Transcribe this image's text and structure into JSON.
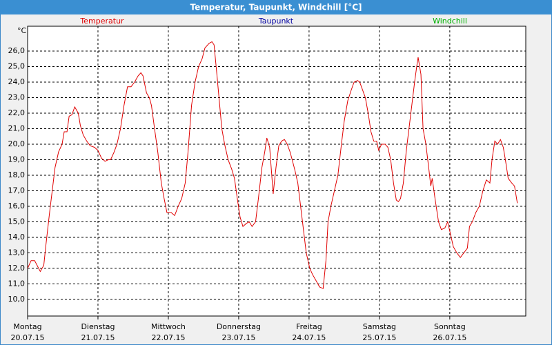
{
  "chart_data": {
    "type": "line",
    "title": "Temperatur, Taupunkt, Windchill [°C]",
    "y_unit": "°C",
    "legend": [
      {
        "name": "Temperatur",
        "color": "#e00000"
      },
      {
        "name": "Taupunkt",
        "color": "#0000a0"
      },
      {
        "name": "Windchill",
        "color": "#00b000"
      }
    ],
    "x": [
      0.0,
      0.05,
      0.1,
      0.18,
      0.23,
      0.26,
      0.31,
      0.35,
      0.39,
      0.44,
      0.49,
      0.52,
      0.56,
      0.59,
      0.63,
      0.67,
      0.72,
      0.75,
      0.79,
      0.84,
      0.89,
      0.95,
      1.0,
      1.05,
      1.1,
      1.15,
      1.18,
      1.23,
      1.27,
      1.32,
      1.37,
      1.42,
      1.47,
      1.52,
      1.57,
      1.61,
      1.64,
      1.69,
      1.73,
      1.76,
      1.81,
      1.85,
      1.9,
      1.94,
      1.98,
      2.04,
      2.09,
      2.14,
      2.19,
      2.24,
      2.28,
      2.33,
      2.38,
      2.43,
      2.48,
      2.52,
      2.58,
      2.62,
      2.65,
      2.69,
      2.73,
      2.76,
      2.8,
      2.85,
      2.9,
      2.94,
      2.98,
      3.02,
      3.06,
      3.11,
      3.15,
      3.19,
      3.24,
      3.28,
      3.33,
      3.37,
      3.4,
      3.44,
      3.49,
      3.53,
      3.57,
      3.61,
      3.65,
      3.69,
      3.73,
      3.76,
      3.8,
      3.84,
      3.88,
      3.92,
      3.96,
      4.01,
      4.05,
      4.1,
      4.15,
      4.2,
      4.24,
      4.27,
      4.31,
      4.36,
      4.41,
      4.46,
      4.5,
      4.55,
      4.6,
      4.64,
      4.69,
      4.72,
      4.76,
      4.8,
      4.84,
      4.88,
      4.92,
      4.96,
      4.99,
      5.03,
      5.08,
      5.12,
      5.16,
      5.2,
      5.24,
      5.27,
      5.3,
      5.34,
      5.38,
      5.42,
      5.46,
      5.5,
      5.53,
      5.55,
      5.59,
      5.62,
      5.66,
      5.7,
      5.73,
      5.75,
      5.79,
      5.84,
      5.88,
      5.93,
      5.97,
      6.01,
      6.05,
      6.1,
      6.15,
      6.2,
      6.25,
      6.28,
      6.32,
      6.37,
      6.42,
      6.47,
      6.52,
      6.57,
      6.6,
      6.64,
      6.68,
      6.72,
      6.76,
      6.79,
      6.83,
      6.88,
      6.92,
      6.96
    ],
    "series": [
      {
        "name": "Temperatur",
        "color": "#e00000",
        "values": [
          12.0,
          12.5,
          12.5,
          11.8,
          12.2,
          13.5,
          15.5,
          17.0,
          18.5,
          19.5,
          20.0,
          20.8,
          20.8,
          21.8,
          21.9,
          22.4,
          22.0,
          21.2,
          20.6,
          20.2,
          19.9,
          19.8,
          19.6,
          19.1,
          18.9,
          19.0,
          19.0,
          19.5,
          20.0,
          21.0,
          22.5,
          23.7,
          23.7,
          24.0,
          24.4,
          24.6,
          24.4,
          23.3,
          23.0,
          22.5,
          20.8,
          19.5,
          17.5,
          16.5,
          15.6,
          15.6,
          15.4,
          16.0,
          16.5,
          17.5,
          19.5,
          22.5,
          24.0,
          25.0,
          25.5,
          26.2,
          26.5,
          26.6,
          26.4,
          24.5,
          22.5,
          21.0,
          20.0,
          19.0,
          18.4,
          17.8,
          16.5,
          15.3,
          14.7,
          14.9,
          15.0,
          14.7,
          15.0,
          16.5,
          18.5,
          19.5,
          20.4,
          19.8,
          16.8,
          18.5,
          19.9,
          20.2,
          20.3,
          20.0,
          19.5,
          19.0,
          18.3,
          17.5,
          16.0,
          14.5,
          13.0,
          12.0,
          11.6,
          11.2,
          10.8,
          10.7,
          12.5,
          15.0,
          16.0,
          17.0,
          18.0,
          20.0,
          21.5,
          22.8,
          23.5,
          24.0,
          24.1,
          24.0,
          23.5,
          23.0,
          22.0,
          20.8,
          20.2,
          20.2,
          19.6,
          20.0,
          20.0,
          19.8,
          19.0,
          17.5,
          16.4,
          16.3,
          16.5,
          17.5,
          19.5,
          21.0,
          22.5,
          24.0,
          25.0,
          25.6,
          24.5,
          21.0,
          20.0,
          18.5,
          17.3,
          17.8,
          16.5,
          15.0,
          14.5,
          14.6,
          15.0,
          14.2,
          13.4,
          13.0,
          12.7,
          13.0,
          13.3,
          14.7,
          15.0,
          15.6,
          16.0,
          17.0,
          17.7,
          17.5,
          19.0,
          20.2,
          20.0,
          20.3,
          19.8,
          19.0,
          17.8,
          17.5,
          17.3,
          16.2
        ]
      }
    ],
    "xlim": [
      0,
      7.08
    ],
    "xticks": [
      {
        "value": 0,
        "label": "Montag"
      },
      {
        "value": 1,
        "label": "Dienstag"
      },
      {
        "value": 2,
        "label": "Mittwoch"
      },
      {
        "value": 3,
        "label": "Donnerstag"
      },
      {
        "value": 4,
        "label": "Freitag"
      },
      {
        "value": 5,
        "label": "Samstag"
      },
      {
        "value": 6,
        "label": "Sonntag"
      }
    ],
    "xtick_dates": [
      "20.07.15",
      "21.07.15",
      "22.07.15",
      "23.07.15",
      "24.07.15",
      "25.07.15",
      "26.07.15"
    ],
    "ylim": [
      8.93,
      27.6
    ],
    "yticks": [
      {
        "value": 10,
        "label": "10,0"
      },
      {
        "value": 11,
        "label": "11,0"
      },
      {
        "value": 12,
        "label": "12,0"
      },
      {
        "value": 13,
        "label": "13,0"
      },
      {
        "value": 14,
        "label": "14,0"
      },
      {
        "value": 15,
        "label": "15,0"
      },
      {
        "value": 16,
        "label": "16,0"
      },
      {
        "value": 17,
        "label": "17,0"
      },
      {
        "value": 18,
        "label": "18,0"
      },
      {
        "value": 19,
        "label": "19,0"
      },
      {
        "value": 20,
        "label": "20,0"
      },
      {
        "value": 21,
        "label": "21,0"
      },
      {
        "value": 22,
        "label": "22,0"
      },
      {
        "value": 23,
        "label": "23,0"
      },
      {
        "value": 24,
        "label": "24,0"
      },
      {
        "value": 25,
        "label": "25,0"
      },
      {
        "value": 26,
        "label": "26,0"
      }
    ],
    "grid": true
  }
}
